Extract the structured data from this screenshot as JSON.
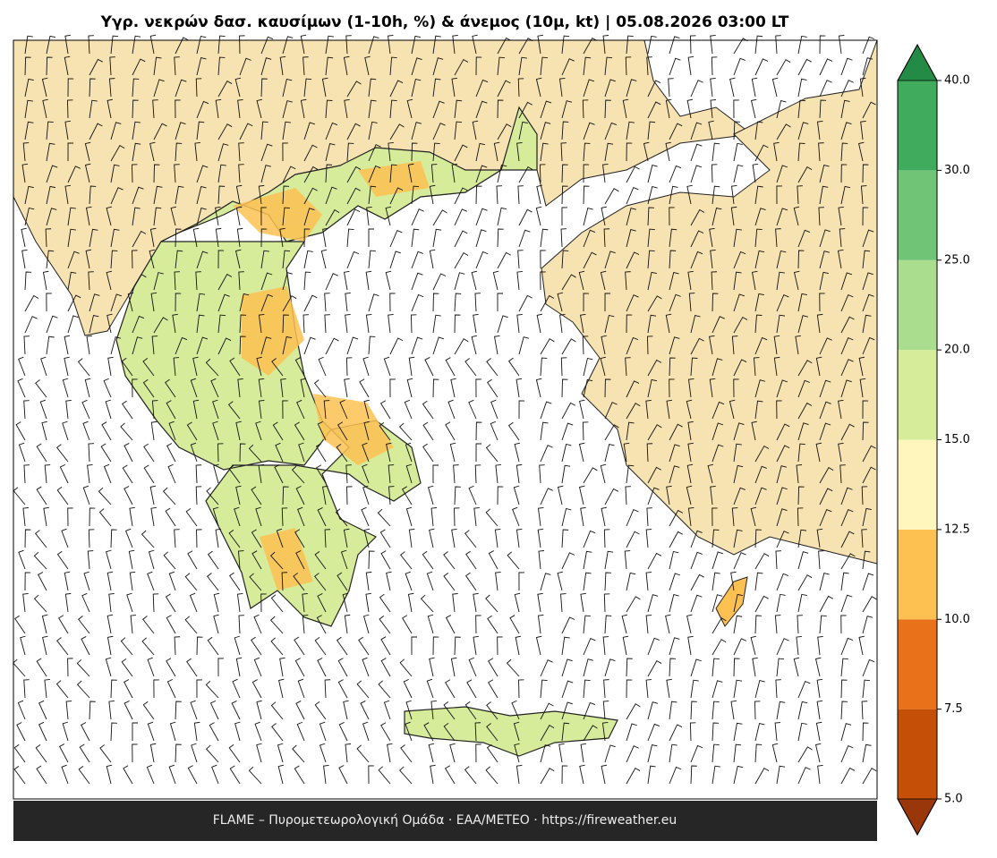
{
  "header": {
    "title": "Υγρ. νεκρών δασ. καυσίμων (1-10h, %) & άνεμος (10μ, kt)  |  05.08.2026 03:00 LT"
  },
  "footer": {
    "text": "FLAME – Πυρομετεωρολογική Ομάδα · ΕΑΑ/METEO · https://fireweather.eu"
  },
  "colorbar": {
    "ticks": [
      {
        "value": 5,
        "label": "5.0"
      },
      {
        "value": 7.5,
        "label": "7.5"
      },
      {
        "value": 10,
        "label": "10.0"
      },
      {
        "value": 12.5,
        "label": "12.5"
      },
      {
        "value": 15,
        "label": "15.0"
      },
      {
        "value": 20,
        "label": "20.0"
      },
      {
        "value": 25,
        "label": "25.0"
      },
      {
        "value": 30,
        "label": "30.0"
      },
      {
        "value": 40,
        "label": "40.0"
      }
    ],
    "colors": [
      "#c64f07",
      "#e8711a",
      "#fdc152",
      "#fef6bd",
      "#d7ec9b",
      "#aadd8d",
      "#70c476",
      "#41ab5d"
    ],
    "under_color": "#99370a",
    "over_color": "#238b45"
  }
}
